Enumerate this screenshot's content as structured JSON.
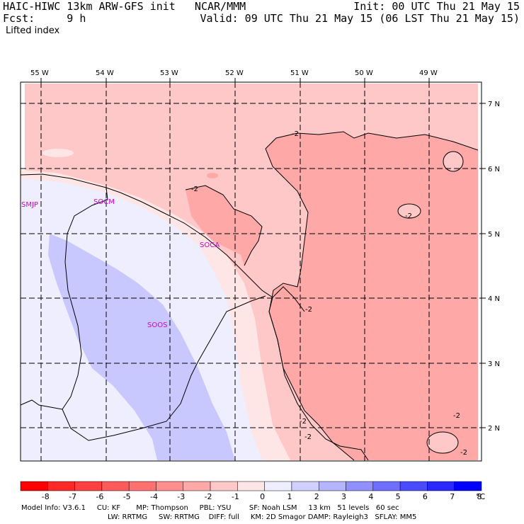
{
  "header": {
    "left_line1": "HAIC-HIWC 13km ARW-GFS init   NCAR/MMM",
    "left_line2": "Fcst:     9 h",
    "right_line1": "Init: 00 UTC Thu 21 May 15",
    "right_line2": "Valid: 09 UTC Thu 21 May 15 (06 LST Thu 21 May 15)",
    "field_name": "Lifted index"
  },
  "map": {
    "lon_labels": [
      "55 W",
      "54 W",
      "53 W",
      "52 W",
      "51 W",
      "50 W",
      "49 W"
    ],
    "lat_labels": [
      "7 N",
      "6 N",
      "5 N",
      "4 N",
      "3 N",
      "2 N"
    ],
    "stations": [
      "SMJP",
      "SOCM",
      "SOCA",
      "SOOS"
    ],
    "contour_labels": [
      "-2",
      "-2",
      "-2",
      "-2",
      "-2",
      "-2",
      "-2",
      "-2"
    ]
  },
  "colorbar": {
    "ticks": [
      "-8",
      "-7",
      "-6",
      "-5",
      "-4",
      "-3",
      "-2",
      "-1",
      "0",
      "1",
      "2",
      "3",
      "4",
      "5",
      "6",
      "7",
      "8"
    ],
    "unit": "°C",
    "colors": [
      "#ff0000",
      "#ff2828",
      "#ff4040",
      "#ff5a5a",
      "#ff7070",
      "#ff8e8e",
      "#ffa8a8",
      "#ffc8c8",
      "#ffe6e6",
      "#eeeeff",
      "#d0d0ff",
      "#b4b4ff",
      "#9090ff",
      "#6e6eff",
      "#4a4aff",
      "#2828ff",
      "#0000ff"
    ]
  },
  "footer": {
    "line1": "Model Info: V3.6.1     CU: KF       MP: Thompson     PBL: YSU        SF: Noah LSM     13 km   51 levels   60 sec",
    "line2": "LW: RRTMG     SW: RRTMG    DIFF: full     KM: 2D Smagor DAMP: Rayleigh3   SFLAY: MM5"
  }
}
